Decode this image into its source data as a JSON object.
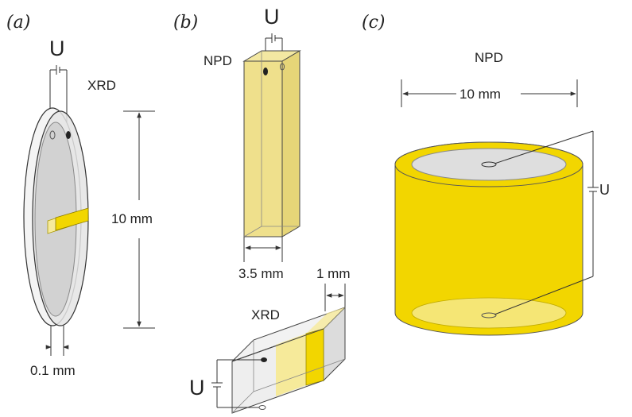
{
  "panels": {
    "a": {
      "label": "(a)",
      "voltage_label": "U",
      "method_label": "XRD",
      "height_dim": "10 mm",
      "thickness_dim": "0.1 mm"
    },
    "b": {
      "label": "(b)",
      "voltage_label_top": "U",
      "method_label_top": "NPD",
      "width_dim": "3.5 mm",
      "method_label_bottom": "XRD",
      "depth_dim": "1 mm",
      "voltage_label_bottom": "U"
    },
    "c": {
      "label": "(c)",
      "method_label": "NPD",
      "diameter_dim": "10 mm",
      "voltage_label": "U"
    }
  },
  "colors": {
    "sample_yellow": "#f2d600",
    "pale_yellow": "#f6e98a",
    "rod_yellow": "#efe08c",
    "disc_gray": "#d9d9d9",
    "outline": "#333333"
  }
}
